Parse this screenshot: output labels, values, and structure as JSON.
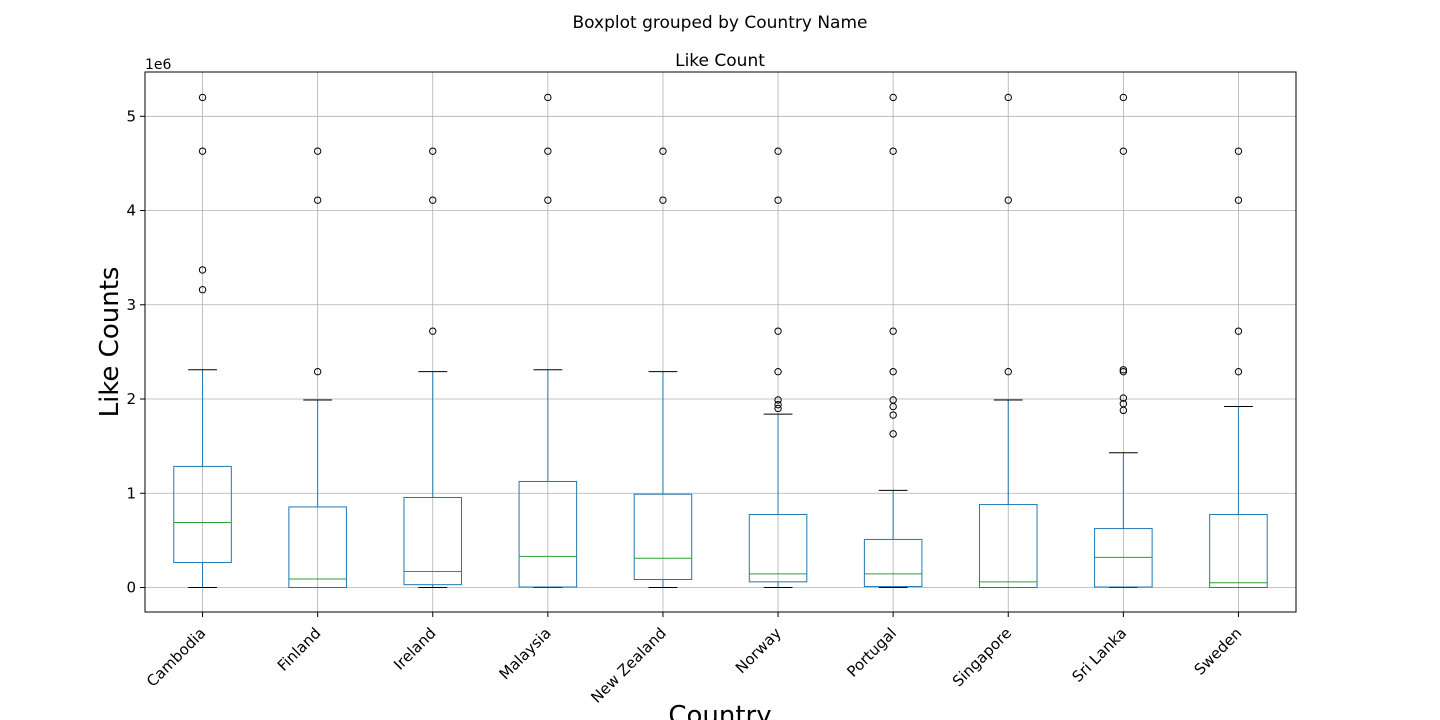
{
  "chart_data": {
    "type": "box",
    "title": "Boxplot grouped by Country Name",
    "subtitle": "Like Count",
    "xlabel": "Country",
    "ylabel": "Like Counts",
    "y_offset_label": "1e6",
    "y_scale": 1000000,
    "ylim": [
      -260000,
      5470000
    ],
    "yticks": [
      0,
      1000000,
      2000000,
      3000000,
      4000000,
      5000000
    ],
    "ytick_labels": [
      "0",
      "1",
      "2",
      "3",
      "4",
      "5"
    ],
    "grid": true,
    "colors": {
      "box": "#1f77b4",
      "median": "#2ca02c",
      "whisker_cap": "#000000",
      "grid": "#b0b0b0"
    },
    "categories": [
      "Cambodia",
      "Finland",
      "Ireland",
      "Malaysia",
      "New Zealand",
      "Norway",
      "Portugal",
      "Singapore",
      "Sri Lanka",
      "Sweden"
    ],
    "boxes": [
      {
        "name": "Cambodia",
        "whislo": 0,
        "q1": 265000,
        "med": 690000,
        "q3": 1285000,
        "whishi": 2310000,
        "fliers": [
          3160000,
          3370000,
          4630000,
          5200000
        ]
      },
      {
        "name": "Finland",
        "whislo": 0,
        "q1": 0,
        "med": 90000,
        "q3": 855000,
        "whishi": 1990000,
        "fliers": [
          2290000,
          4110000,
          4630000
        ]
      },
      {
        "name": "Ireland",
        "whislo": 0,
        "q1": 30000,
        "med": 170000,
        "q3": 955000,
        "whishi": 2290000,
        "fliers": [
          2720000,
          4110000,
          4630000
        ]
      },
      {
        "name": "Malaysia",
        "whislo": 0,
        "q1": 5000,
        "med": 330000,
        "q3": 1125000,
        "whishi": 2310000,
        "fliers": [
          4110000,
          4630000,
          5200000
        ]
      },
      {
        "name": "New Zealand",
        "whislo": 0,
        "q1": 85000,
        "med": 310000,
        "q3": 990000,
        "whishi": 2290000,
        "fliers": [
          4110000,
          4630000
        ]
      },
      {
        "name": "Norway",
        "whislo": 0,
        "q1": 60000,
        "med": 145000,
        "q3": 775000,
        "whishi": 1840000,
        "fliers": [
          1900000,
          1940000,
          1990000,
          2290000,
          2720000,
          4110000,
          4630000
        ]
      },
      {
        "name": "Portugal",
        "whislo": 0,
        "q1": 10000,
        "med": 145000,
        "q3": 510000,
        "whishi": 1030000,
        "fliers": [
          1630000,
          1830000,
          1920000,
          1990000,
          2290000,
          2720000,
          4630000,
          5200000
        ]
      },
      {
        "name": "Singapore",
        "whislo": 0,
        "q1": 0,
        "med": 60000,
        "q3": 880000,
        "whishi": 1990000,
        "fliers": [
          2290000,
          4110000,
          5200000
        ]
      },
      {
        "name": "Sri Lanka",
        "whislo": 0,
        "q1": 5000,
        "med": 320000,
        "q3": 625000,
        "whishi": 1430000,
        "fliers": [
          1880000,
          1950000,
          2010000,
          2290000,
          2310000,
          4630000,
          5200000
        ]
      },
      {
        "name": "Sweden",
        "whislo": 0,
        "q1": 0,
        "med": 50000,
        "q3": 775000,
        "whishi": 1920000,
        "fliers": [
          2290000,
          2720000,
          4110000,
          4630000
        ]
      }
    ]
  }
}
